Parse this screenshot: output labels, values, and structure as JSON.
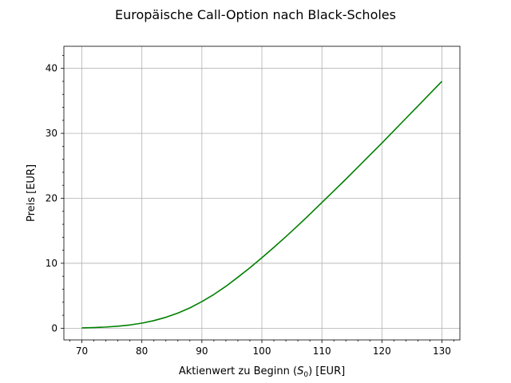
{
  "chart_data": {
    "type": "line",
    "title": "Europäische Call-Option nach Black-Scholes",
    "xlabel": {
      "prefix": "Aktienwert zu Beginn (",
      "symbol": "S",
      "subscript": "0",
      "suffix": ") [EUR]"
    },
    "ylabel": "Preis [EUR]",
    "xlim": [
      67,
      133
    ],
    "ylim": [
      -1.8,
      43.4
    ],
    "xticks": [
      70,
      80,
      90,
      100,
      110,
      120,
      130
    ],
    "yticks": [
      0,
      10,
      20,
      30,
      40
    ],
    "x_minor_step": 2,
    "y_minor_step": 2,
    "grid": true,
    "series": [
      {
        "color": "#008000",
        "x": [
          70,
          72,
          74,
          76,
          78,
          80,
          82,
          84,
          86,
          88,
          90,
          92,
          94,
          96,
          98,
          100,
          102,
          104,
          106,
          108,
          110,
          112,
          114,
          116,
          118,
          120,
          122,
          124,
          126,
          128,
          130
        ],
        "y": [
          0.05,
          0.1,
          0.18,
          0.31,
          0.5,
          0.78,
          1.17,
          1.68,
          2.33,
          3.13,
          4.1,
          5.2,
          6.45,
          7.85,
          9.3,
          10.85,
          12.45,
          14.1,
          15.8,
          17.55,
          19.35,
          21.15,
          22.95,
          24.8,
          26.65,
          28.5,
          30.4,
          32.3,
          34.2,
          36.1,
          38.0
        ]
      }
    ]
  }
}
